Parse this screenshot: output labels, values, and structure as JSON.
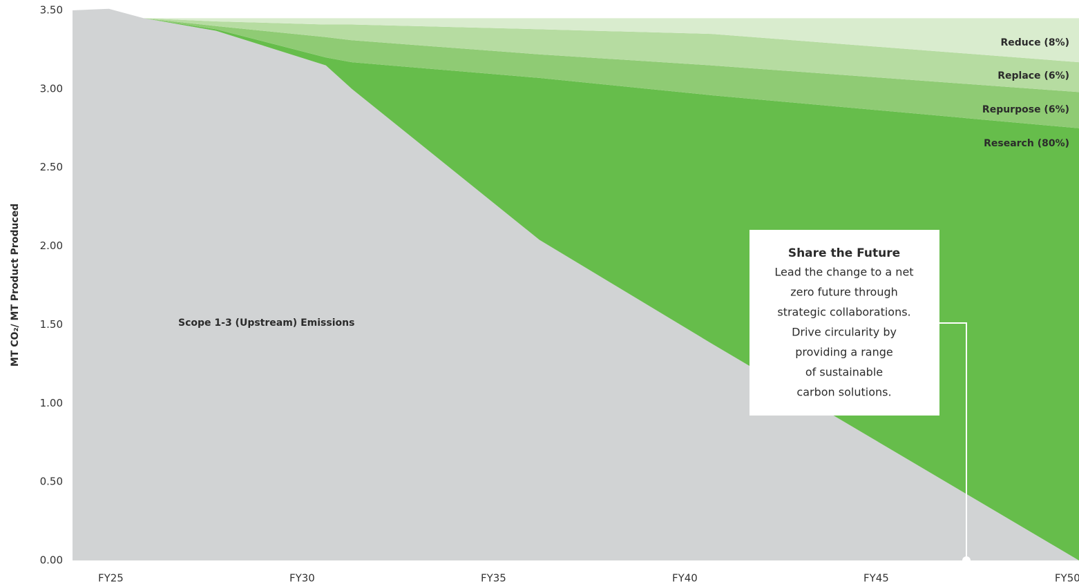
{
  "chart_data": {
    "type": "stacked_area",
    "y_label": "MT CO₂/ MT Product Produced",
    "x": [
      24,
      24.95,
      25.86,
      27.75,
      30.62,
      31.3,
      36.2,
      40.7,
      50.3
    ],
    "xlim": [
      24,
      50.3
    ],
    "xticks": [
      {
        "value": 25,
        "label": "FY25"
      },
      {
        "value": 30,
        "label": "FY30"
      },
      {
        "value": 35,
        "label": "FY35"
      },
      {
        "value": 40,
        "label": "FY40"
      },
      {
        "value": 45,
        "label": "FY45"
      },
      {
        "value": 50,
        "label": "FY50"
      }
    ],
    "ylim": [
      0,
      3.5
    ],
    "yticks": [
      {
        "value": 0,
        "label": "0.00"
      },
      {
        "value": 0.5,
        "label": "0.50"
      },
      {
        "value": 1,
        "label": "1.00"
      },
      {
        "value": 1.5,
        "label": "1.50"
      },
      {
        "value": 2,
        "label": "2.00"
      },
      {
        "value": 2.5,
        "label": "2.50"
      },
      {
        "value": 3,
        "label": "3.00"
      },
      {
        "value": 3.5,
        "label": "3.50"
      }
    ],
    "series": [
      {
        "name": "Scope 1-3 (Upstream) Emissions",
        "color": "#d1d3d4",
        "values": [
          3.5,
          3.51,
          3.45,
          3.37,
          3.15,
          3.0,
          2.04,
          1.38,
          0
        ]
      },
      {
        "name": "Research (80%)",
        "color": "#66bd4b",
        "values": [
          0,
          0,
          0,
          0.01,
          0.05,
          0.17,
          1.03,
          1.58,
          2.75
        ]
      },
      {
        "name": "Repurpose (6%)",
        "color": "#8fcb74",
        "values": [
          0,
          0,
          0,
          0.02,
          0.13,
          0.14,
          0.15,
          0.19,
          0.23
        ]
      },
      {
        "name": "Replace (6%)",
        "color": "#b6dca1",
        "values": [
          0,
          0,
          0,
          0.03,
          0.08,
          0.1,
          0.16,
          0.2,
          0.19
        ]
      },
      {
        "name": "Reduce (8%)",
        "color": "#d9ecce",
        "values": [
          0,
          0,
          0,
          0.02,
          0.04,
          0.04,
          0.07,
          0.1,
          0.28
        ]
      }
    ],
    "annotation": {
      "title": "Share the Future",
      "lines": [
        "Lead the change to a net",
        "zero future through",
        "strategic collaborations.",
        "Drive circularity by",
        "providing a range",
        "of sustainable",
        "carbon solutions."
      ]
    }
  }
}
